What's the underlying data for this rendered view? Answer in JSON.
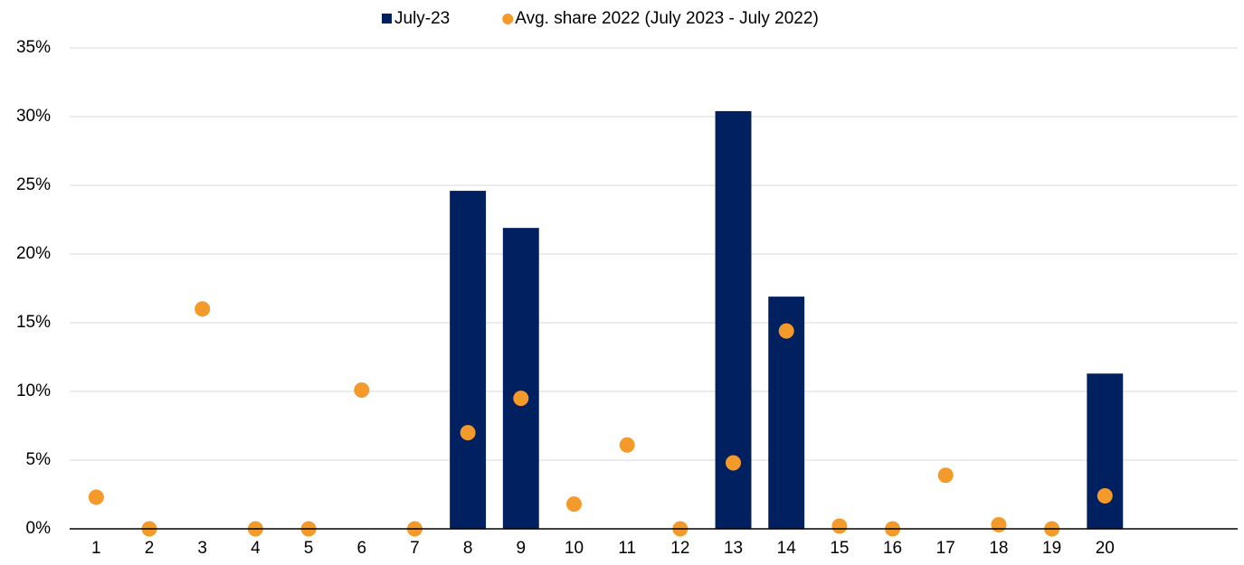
{
  "chart_data": {
    "type": "bar",
    "categories": [
      "1",
      "2",
      "3",
      "4",
      "5",
      "6",
      "7",
      "8",
      "9",
      "10",
      "11",
      "12",
      "13",
      "14",
      "15",
      "16",
      "17",
      "18",
      "19",
      "20",
      null,
      null
    ],
    "series": [
      {
        "name": "July-23",
        "type": "bar",
        "color": "#002060",
        "values": [
          0,
          0,
          0,
          0,
          0,
          0,
          0,
          24.6,
          21.9,
          0,
          0,
          0,
          30.4,
          16.9,
          0,
          0,
          0,
          0,
          0,
          11.3,
          null,
          null
        ]
      },
      {
        "name": "Avg. share 2022 (July 2023 - July 2022)",
        "type": "scatter",
        "color": "#f39a2b",
        "values": [
          2.3,
          0,
          16.0,
          0,
          0,
          10.1,
          0,
          7.0,
          9.5,
          1.8,
          6.1,
          0,
          4.8,
          14.4,
          0.2,
          0,
          3.9,
          0.3,
          0,
          2.4,
          null,
          null
        ]
      }
    ],
    "ylim": [
      0,
      35
    ],
    "yticks": [
      {
        "value": 0,
        "label": "0%"
      },
      {
        "value": 5,
        "label": "5%"
      },
      {
        "value": 10,
        "label": "10%"
      },
      {
        "value": 15,
        "label": "15%"
      },
      {
        "value": 20,
        "label": "20%"
      },
      {
        "value": 25,
        "label": "25%"
      },
      {
        "value": 30,
        "label": "30%"
      },
      {
        "value": 35,
        "label": "35%"
      }
    ],
    "grid": true,
    "legend": "top"
  }
}
